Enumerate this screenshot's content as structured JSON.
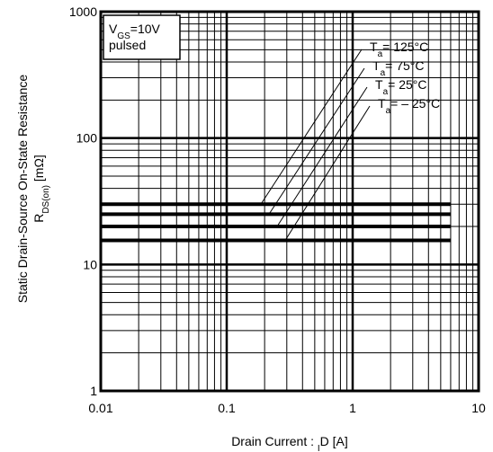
{
  "chart_data": {
    "type": "line",
    "legend_text": [
      "VGS=10V",
      "pulsed"
    ],
    "xlabel": "Drain Current :  ID [A]",
    "ylabel": [
      "Static Drain-Source On-State Resistance",
      "RDS(on) [mΩ]"
    ],
    "xscale": "log",
    "yscale": "log",
    "xlim": [
      0.01,
      10
    ],
    "ylim": [
      1,
      1000
    ],
    "xticks": [
      0.01,
      0.1,
      1,
      10
    ],
    "yticks": [
      1,
      10,
      100,
      1000
    ],
    "grid": true,
    "series": [
      {
        "name": "Ta= 125°C",
        "color": "#000000",
        "x": [
          0.01,
          6
        ],
        "values": [
          30,
          30
        ]
      },
      {
        "name": "Ta= 75°C",
        "color": "#000000",
        "x": [
          0.01,
          6
        ],
        "values": [
          25,
          25
        ]
      },
      {
        "name": "Ta= 25°C",
        "color": "#000000",
        "x": [
          0.01,
          6
        ],
        "values": [
          20,
          20
        ]
      },
      {
        "name": "Ta= – 25°C",
        "color": "#000000",
        "x": [
          0.01,
          6
        ],
        "values": [
          15.5,
          15.5
        ]
      }
    ]
  }
}
